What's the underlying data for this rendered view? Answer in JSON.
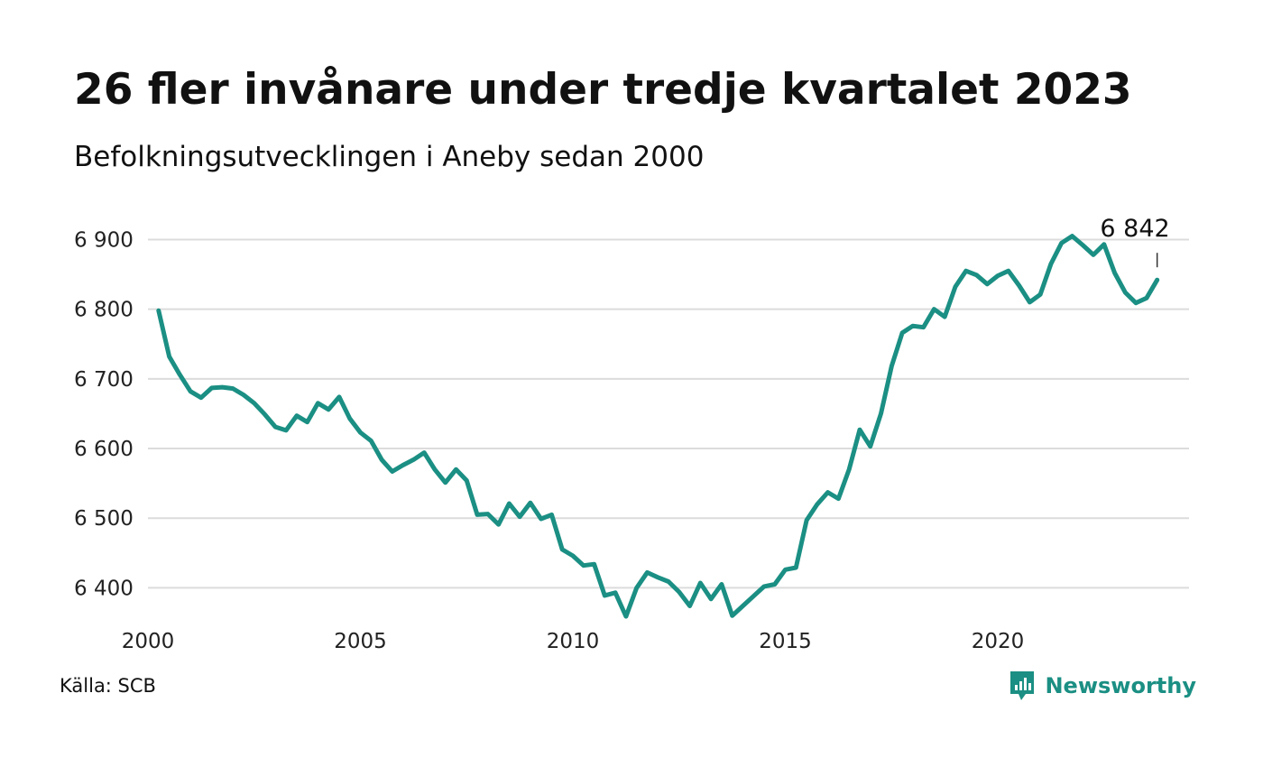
{
  "header": {
    "title": "26 fler invånare under tredje kvartalet 2023",
    "subtitle": "Befolkningsutvecklingen i Aneby sedan 2000"
  },
  "footer": {
    "source": "Källa: SCB",
    "brand": "Newsworthy"
  },
  "colors": {
    "line": "#1b8f83",
    "grid": "#dcdcdc",
    "brand": "#1b8f83"
  },
  "chart_data": {
    "type": "line",
    "title": "26 fler invånare under tredje kvartalet 2023",
    "subtitle": "Befolkningsutvecklingen i Aneby sedan 2000",
    "xlabel": "",
    "ylabel": "",
    "xlim": [
      2000,
      2024.5
    ],
    "ylim": [
      6350,
      6920
    ],
    "grid": true,
    "x_ticks": [
      {
        "value": 2000,
        "label": "2000"
      },
      {
        "value": 2005,
        "label": "2005"
      },
      {
        "value": 2010,
        "label": "2010"
      },
      {
        "value": 2015,
        "label": "2015"
      },
      {
        "value": 2020,
        "label": "2020"
      }
    ],
    "y_ticks": [
      {
        "value": 6400,
        "label": "6 400"
      },
      {
        "value": 6500,
        "label": "6 500"
      },
      {
        "value": 6600,
        "label": "6 600"
      },
      {
        "value": 6700,
        "label": "6 700"
      },
      {
        "value": 6800,
        "label": "6 800"
      },
      {
        "value": 6900,
        "label": "6 900"
      }
    ],
    "end_label": "6 842",
    "series": [
      {
        "x_start": 2000.25,
        "x_step": 0.25,
        "values": [
          6798,
          6732,
          6706,
          6682,
          6673,
          6687,
          6688,
          6686,
          6677,
          6665,
          6649,
          6631,
          6626,
          6647,
          6638,
          6665,
          6656,
          6674,
          6643,
          6623,
          6611,
          6584,
          6567,
          6576,
          6584,
          6594,
          6570,
          6551,
          6570,
          6554,
          6505,
          6506,
          6491,
          6521,
          6502,
          6522,
          6499,
          6505,
          6455,
          6446,
          6432,
          6434,
          6389,
          6393,
          6359,
          6400,
          6422,
          6415,
          6409,
          6394,
          6374,
          6407,
          6384,
          6405,
          6360,
          6374,
          6388,
          6402,
          6405,
          6426,
          6429,
          6497,
          6520,
          6537,
          6528,
          6570,
          6627,
          6603,
          6650,
          6718,
          6766,
          6776,
          6774,
          6800,
          6789,
          6832,
          6855,
          6849,
          6836,
          6848,
          6855,
          6834,
          6810,
          6821,
          6865,
          6895,
          6905,
          6892,
          6878,
          6893,
          6852,
          6824,
          6809,
          6816,
          6842
        ]
      }
    ]
  }
}
